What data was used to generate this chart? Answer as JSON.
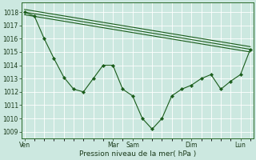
{
  "background_color": "#cce8e0",
  "grid_color": "#ffffff",
  "line_color": "#1a5c1a",
  "xlabel": "Pression niveau de la mer( hPa )",
  "ylim": [
    1008.5,
    1018.7
  ],
  "yticks": [
    1009,
    1010,
    1011,
    1012,
    1013,
    1014,
    1015,
    1016,
    1017,
    1018
  ],
  "xtick_labels": [
    "Ven",
    "",
    "",
    "Mar",
    "Sam",
    "",
    "",
    "Dim",
    "",
    "Lun"
  ],
  "series1": {
    "x": [
      0,
      1,
      2,
      3,
      4,
      5,
      6,
      7,
      8,
      9,
      10,
      11,
      12,
      13,
      14,
      15,
      16,
      17,
      18,
      19,
      20,
      21,
      22,
      23
    ],
    "y": [
      1018.0,
      1017.7,
      1016.0,
      1014.5,
      1013.1,
      1012.2,
      1012.0,
      1013.0,
      1014.0,
      1014.0,
      1012.2,
      1011.7,
      1010.0,
      1009.2,
      1010.0,
      1011.7,
      1012.2,
      1012.5,
      1013.0,
      1013.3,
      1012.2,
      1012.8,
      1013.3,
      1015.2
    ]
  },
  "series2": {
    "x": [
      0,
      23
    ],
    "y": [
      1018.0,
      1015.2
    ]
  },
  "series3": {
    "x": [
      0,
      23
    ],
    "y": [
      1017.8,
      1015.0
    ]
  },
  "series4": {
    "x": [
      0,
      23
    ],
    "y": [
      1018.2,
      1015.4
    ]
  }
}
